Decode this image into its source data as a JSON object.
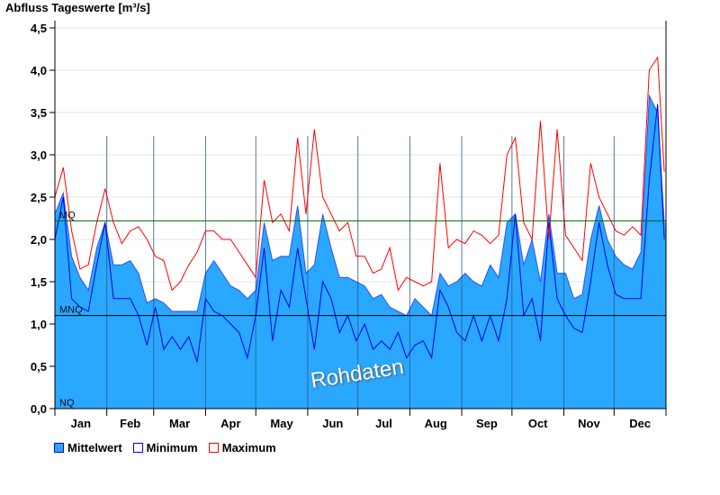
{
  "chart_data": {
    "type": "area",
    "title": "Abfluss Tageswerte [m³/s]",
    "xlabel": "",
    "ylabel": "Abfluss Tageswerte [m³/s]",
    "ylim": [
      0,
      4.5
    ],
    "yticks": [
      "0,0",
      "0,5",
      "1,0",
      "1,5",
      "2,0",
      "2,5",
      "3,0",
      "3,5",
      "4,0",
      "4,5"
    ],
    "ytick_values": [
      0,
      0.5,
      1,
      1.5,
      2,
      2.5,
      3,
      3.5,
      4,
      4.5
    ],
    "months": [
      "Jan",
      "Feb",
      "Mar",
      "Apr",
      "May",
      "Jun",
      "Jul",
      "Aug",
      "Sep",
      "Oct",
      "Nov",
      "Dec"
    ],
    "month_start_days": [
      0,
      31,
      59,
      90,
      120,
      151,
      181,
      212,
      243,
      273,
      304,
      334,
      365
    ],
    "grid": true,
    "legend_position": "bottom-left",
    "x_day_step": 5,
    "series": [
      {
        "name": "Mittelwert",
        "color": "#2aa7ff",
        "values": [
          2.3,
          2.55,
          1.8,
          1.55,
          1.4,
          1.9,
          2.2,
          1.7,
          1.7,
          1.75,
          1.6,
          1.25,
          1.3,
          1.25,
          1.15,
          1.15,
          1.15,
          1.15,
          1.6,
          1.75,
          1.6,
          1.45,
          1.4,
          1.3,
          1.4,
          2.2,
          1.75,
          1.8,
          1.8,
          2.4,
          1.6,
          1.7,
          2.3,
          1.9,
          1.55,
          1.55,
          1.5,
          1.45,
          1.3,
          1.35,
          1.2,
          1.15,
          1.1,
          1.3,
          1.2,
          1.1,
          1.6,
          1.45,
          1.5,
          1.6,
          1.5,
          1.45,
          1.7,
          1.55,
          2.2,
          2.3,
          1.7,
          2.0,
          1.5,
          2.3,
          1.6,
          1.6,
          1.3,
          1.35,
          2.0,
          2.4,
          2.0,
          1.8,
          1.7,
          1.65,
          1.85,
          3.7,
          3.5,
          2.2
        ]
      },
      {
        "name": "Minimum",
        "color": "#0000ee",
        "values": [
          2.0,
          2.5,
          1.3,
          1.2,
          1.15,
          1.7,
          2.2,
          1.3,
          1.3,
          1.3,
          1.1,
          0.75,
          1.2,
          0.7,
          0.85,
          0.7,
          0.85,
          0.55,
          1.3,
          1.15,
          1.1,
          1.0,
          0.9,
          0.6,
          1.1,
          1.9,
          0.8,
          1.4,
          1.2,
          1.9,
          1.3,
          0.7,
          1.5,
          1.3,
          0.9,
          1.1,
          0.8,
          1.0,
          0.7,
          0.8,
          0.7,
          0.9,
          0.6,
          0.75,
          0.8,
          0.6,
          1.4,
          1.2,
          0.9,
          0.8,
          1.1,
          0.8,
          1.1,
          0.8,
          1.3,
          2.3,
          1.1,
          1.3,
          0.8,
          2.2,
          1.3,
          1.1,
          0.95,
          0.9,
          1.5,
          2.2,
          1.7,
          1.35,
          1.3,
          1.3,
          1.3,
          2.7,
          3.6,
          2.0
        ]
      },
      {
        "name": "Maximum",
        "color": "#ff0000",
        "values": [
          2.5,
          2.85,
          2.1,
          1.65,
          1.7,
          2.2,
          2.6,
          2.2,
          1.95,
          2.1,
          2.15,
          2.0,
          1.8,
          1.75,
          1.4,
          1.5,
          1.7,
          1.85,
          2.1,
          2.1,
          2.0,
          2.0,
          1.85,
          1.7,
          1.55,
          2.7,
          2.2,
          2.3,
          2.1,
          3.2,
          2.3,
          3.3,
          2.5,
          2.3,
          2.1,
          2.2,
          1.8,
          1.8,
          1.6,
          1.65,
          1.9,
          1.4,
          1.55,
          1.5,
          1.45,
          1.5,
          2.9,
          1.9,
          2.0,
          1.95,
          2.1,
          2.05,
          1.95,
          2.05,
          3.0,
          3.2,
          2.2,
          2.0,
          3.4,
          2.0,
          3.3,
          2.05,
          1.9,
          1.75,
          2.9,
          2.5,
          2.3,
          2.1,
          2.05,
          2.15,
          2.05,
          4.0,
          4.15,
          2.8
        ]
      }
    ],
    "reference_lines": [
      {
        "label": "MQ",
        "value": 2.22,
        "color": "#006600"
      },
      {
        "label": "MNQ",
        "value": 1.1,
        "color": "#000000"
      },
      {
        "label": "NQ",
        "value": 0,
        "color": "#000000"
      }
    ],
    "watermark": "Rohdaten"
  },
  "legend": {
    "mean": "Mittelwert",
    "min": "Minimum",
    "max": "Maximum"
  }
}
